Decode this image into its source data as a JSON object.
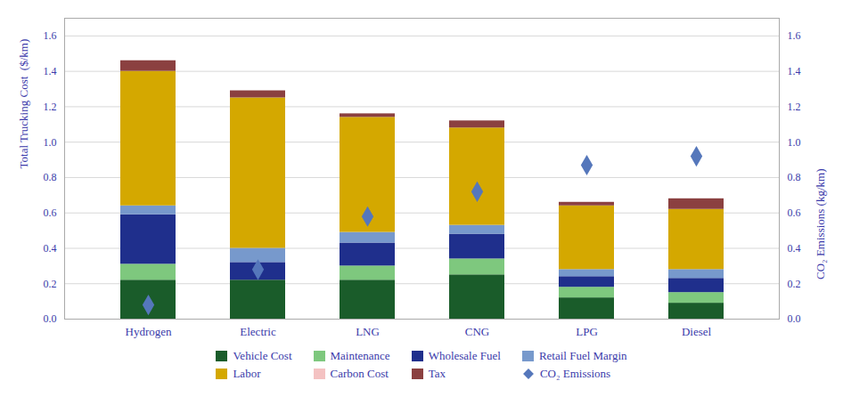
{
  "chart_data": {
    "type": "bar",
    "stacked": true,
    "categories": [
      "Hydrogen",
      "Electric",
      "LNG",
      "CNG",
      "LPG",
      "Diesel"
    ],
    "ylabel": "Total Trucking Cost  ($/km)",
    "y2label": "CO₂ Emissions (kg/km)",
    "ylim": [
      0,
      1.7
    ],
    "yticks": [
      {
        "value": 0,
        "label": "0.0"
      },
      0.2,
      0.4,
      0.6,
      0.8,
      {
        "value": 1,
        "label": "1.0"
      },
      1.2,
      1.4,
      1.6
    ],
    "y2lim": [
      0,
      1.7
    ],
    "y2ticks": [
      {
        "value": 0,
        "label": "0.0"
      },
      0.2,
      0.4,
      0.6,
      0.8,
      {
        "value": 1,
        "label": "1.0"
      },
      1.2,
      1.4,
      1.6
    ],
    "grid": true,
    "legend": "bottom",
    "series": [
      {
        "name": "Vehicle Cost",
        "color": "#1a5c2a",
        "values": [
          0.22,
          0.22,
          0.22,
          0.25,
          0.12,
          0.09
        ]
      },
      {
        "name": "Maintenance",
        "color": "#7ec87e",
        "values": [
          0.09,
          0.0,
          0.08,
          0.09,
          0.06,
          0.06
        ]
      },
      {
        "name": "Wholesale Fuel",
        "color": "#1f2f8c",
        "values": [
          0.28,
          0.1,
          0.13,
          0.14,
          0.06,
          0.08
        ]
      },
      {
        "name": "Retail Fuel Margin",
        "color": "#7799cc",
        "values": [
          0.05,
          0.08,
          0.06,
          0.05,
          0.04,
          0.05
        ]
      },
      {
        "name": "Labor",
        "color": "#d4a800",
        "values": [
          0.76,
          0.85,
          0.65,
          0.55,
          0.36,
          0.34
        ]
      },
      {
        "name": "Carbon Cost",
        "color": "#f4c2c2",
        "values": [
          0.0,
          0.0,
          0.0,
          0.0,
          0.0,
          0.0
        ]
      },
      {
        "name": "Tax",
        "color": "#8B4040",
        "values": [
          0.06,
          0.04,
          0.02,
          0.04,
          0.02,
          0.06
        ]
      },
      {
        "name": "CO₂ Emissions",
        "type": "scatter",
        "axis": "y2",
        "marker": "diamond",
        "color": "#5577bb",
        "values": [
          0.08,
          0.28,
          0.58,
          0.72,
          0.87,
          0.92
        ]
      }
    ]
  }
}
